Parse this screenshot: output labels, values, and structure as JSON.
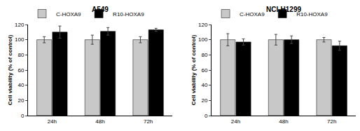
{
  "chart_data": [
    {
      "type": "bar",
      "title": "A549",
      "y_label": "Cell viability (% of control)",
      "categories": [
        "24h",
        "48h",
        "72h"
      ],
      "series": [
        {
          "name": "C-HOXA9",
          "color": "#c8c8c8",
          "values": [
            100,
            100,
            100
          ],
          "errors": [
            4,
            6,
            4
          ]
        },
        {
          "name": "R10-HOXA9",
          "color": "#000000",
          "values": [
            110,
            111,
            113
          ],
          "errors": [
            8,
            5,
            2
          ]
        }
      ],
      "ylim": [
        0,
        120
      ],
      "yticks": [
        0,
        20,
        40,
        60,
        80,
        100,
        120
      ],
      "grid": false,
      "legend": "top left"
    },
    {
      "type": "bar",
      "title": "NCI-H1299",
      "y_label": "Cell viability (% of control)",
      "categories": [
        "24h",
        "48h",
        "72h"
      ],
      "series": [
        {
          "name": "C-HOXA9",
          "color": "#c8c8c8",
          "values": [
            100,
            100,
            100
          ],
          "errors": [
            8,
            7,
            3
          ]
        },
        {
          "name": "R10-HOXA9",
          "color": "#000000",
          "values": [
            97,
            100,
            92
          ],
          "errors": [
            4,
            5,
            6
          ]
        }
      ],
      "ylim": [
        0,
        120
      ],
      "yticks": [
        0,
        20,
        40,
        60,
        80,
        100,
        120
      ],
      "grid": false,
      "legend": "top left"
    }
  ]
}
